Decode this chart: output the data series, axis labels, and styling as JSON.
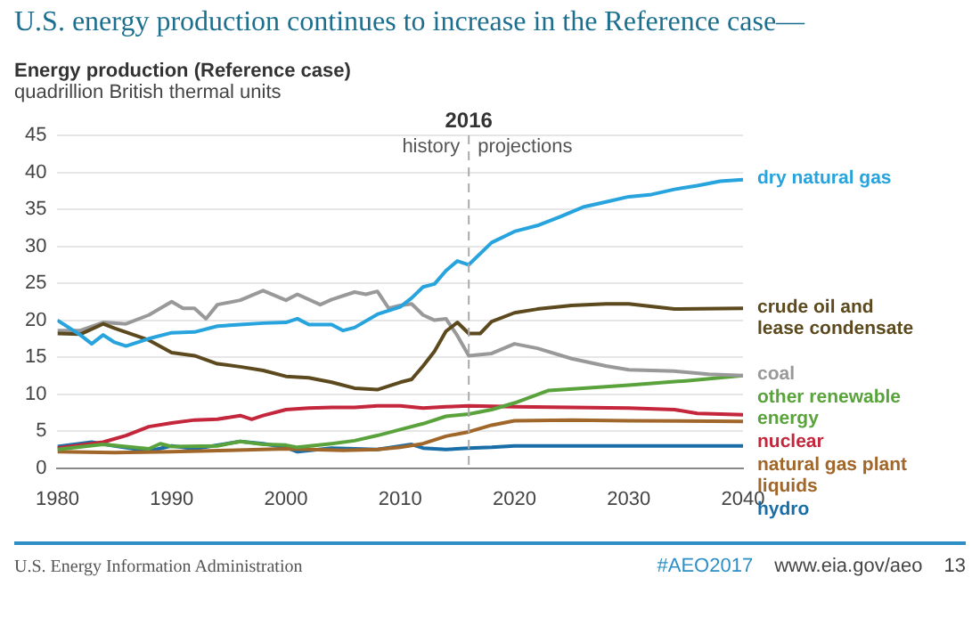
{
  "chart_data": {
    "type": "line",
    "title": "U.S. energy production continues to increase in the Reference case—",
    "subtitle": "Energy production (Reference case)",
    "ylabel": "quadrillion British thermal units",
    "xlim": [
      1980,
      2040
    ],
    "xticks": [
      1980,
      1990,
      2000,
      2010,
      2020,
      2030,
      2040
    ],
    "ylim": [
      0,
      45
    ],
    "yticks": [
      0,
      5,
      10,
      15,
      20,
      25,
      30,
      35,
      40,
      45
    ],
    "grid": "y",
    "marker": "none",
    "line_style": "solid",
    "series": [
      {
        "name": "dry natural gas",
        "color": "#27a3dd",
        "x": [
          1980,
          1982,
          1983,
          1984,
          1985,
          1986,
          1988,
          1990,
          1992,
          1994,
          1996,
          1998,
          2000,
          2001,
          2002,
          2004,
          2005,
          2006,
          2008,
          2010,
          2011,
          2012,
          2013,
          2014,
          2015,
          2016,
          2018,
          2020,
          2022,
          2024,
          2026,
          2028,
          2030,
          2032,
          2034,
          2036,
          2038,
          2040
        ],
        "values": [
          20,
          18,
          16.8,
          18,
          17,
          16.5,
          17.5,
          18.3,
          18.4,
          19.2,
          19.4,
          19.6,
          19.7,
          20.2,
          19.4,
          19.4,
          18.6,
          19,
          20.8,
          21.8,
          23,
          24.5,
          24.9,
          26.7,
          28,
          27.5,
          30.5,
          32,
          32.8,
          34,
          35.3,
          36,
          36.7,
          37,
          37.7,
          38.2,
          38.8,
          39
        ]
      },
      {
        "name": "crude oil and lease condensate",
        "color": "#5c4a1e",
        "x": [
          1980,
          1982,
          1984,
          1985,
          1988,
          1990,
          1992,
          1994,
          1996,
          1998,
          2000,
          2002,
          2004,
          2006,
          2008,
          2010,
          2011,
          2012,
          2013,
          2014,
          2015,
          2016,
          2017,
          2018,
          2020,
          2022,
          2025,
          2028,
          2030,
          2034,
          2040
        ],
        "values": [
          18.2,
          18.1,
          19.5,
          18.9,
          17.3,
          15.6,
          15.2,
          14.1,
          13.7,
          13.2,
          12.4,
          12.2,
          11.6,
          10.8,
          10.6,
          11.6,
          12,
          13.8,
          15.8,
          18.5,
          19.7,
          18.2,
          18.2,
          19.8,
          21,
          21.5,
          22,
          22.2,
          22.2,
          21.5,
          21.6
        ]
      },
      {
        "name": "coal",
        "color": "#999999",
        "x": [
          1980,
          1982,
          1984,
          1986,
          1988,
          1990,
          1991,
          1992,
          1993,
          1994,
          1996,
          1998,
          2000,
          2001,
          2003,
          2004,
          2006,
          2007,
          2008,
          2009,
          2010,
          2011,
          2012,
          2013,
          2014,
          2015,
          2016,
          2018,
          2020,
          2022,
          2025,
          2028,
          2030,
          2034,
          2037,
          2040
        ],
        "values": [
          18.6,
          18.6,
          19.7,
          19.5,
          20.7,
          22.5,
          21.6,
          21.6,
          20.2,
          22.1,
          22.7,
          24,
          22.7,
          23.5,
          22.1,
          22.8,
          23.8,
          23.5,
          23.9,
          21.6,
          22,
          22.2,
          20.7,
          20,
          20.2,
          17.9,
          15.2,
          15.5,
          16.8,
          16.2,
          14.8,
          13.8,
          13.3,
          13.1,
          12.7,
          12.5
        ]
      },
      {
        "name": "other renewable energy",
        "color": "#5aa33c",
        "x": [
          1980,
          1984,
          1988,
          1989,
          1990,
          1994,
          1996,
          1998,
          2000,
          2001,
          2004,
          2006,
          2008,
          2010,
          2012,
          2014,
          2016,
          2018,
          2020,
          2023,
          2026,
          2030,
          2035,
          2040
        ],
        "values": [
          2.5,
          3.2,
          2.6,
          3.3,
          2.9,
          3,
          3.6,
          3.2,
          3.1,
          2.8,
          3.3,
          3.7,
          4.4,
          5.2,
          6,
          7,
          7.3,
          7.9,
          8.8,
          10.5,
          10.8,
          11.2,
          11.8,
          12.5
        ]
      },
      {
        "name": "nuclear",
        "color": "#c4263c",
        "x": [
          1980,
          1984,
          1986,
          1988,
          1990,
          1992,
          1994,
          1996,
          1997,
          1998,
          2000,
          2002,
          2004,
          2006,
          2008,
          2010,
          2012,
          2014,
          2016,
          2020,
          2025,
          2030,
          2034,
          2036,
          2040
        ],
        "values": [
          2.7,
          3.5,
          4.4,
          5.6,
          6.1,
          6.5,
          6.6,
          7.1,
          6.6,
          7.1,
          7.9,
          8.1,
          8.2,
          8.2,
          8.4,
          8.4,
          8.1,
          8.3,
          8.4,
          8.3,
          8.2,
          8.1,
          7.9,
          7.4,
          7.2
        ]
      },
      {
        "name": "natural gas plant liquids",
        "color": "#a0662a",
        "x": [
          1980,
          1985,
          1990,
          1995,
          2000,
          2005,
          2008,
          2010,
          2012,
          2014,
          2016,
          2018,
          2020,
          2025,
          2030,
          2040
        ],
        "values": [
          2.2,
          2.1,
          2.2,
          2.4,
          2.6,
          2.4,
          2.5,
          2.8,
          3.3,
          4.3,
          4.9,
          5.8,
          6.4,
          6.5,
          6.4,
          6.3
        ]
      },
      {
        "name": "hydro",
        "color": "#1a6ea8",
        "x": [
          1980,
          1983,
          1985,
          1988,
          1990,
          1992,
          1996,
          1998,
          2000,
          2001,
          2004,
          2008,
          2011,
          2012,
          2014,
          2016,
          2018,
          2020,
          2040
        ],
        "values": [
          2.9,
          3.5,
          3,
          2.3,
          3,
          2.6,
          3.6,
          3.3,
          2.8,
          2.2,
          2.7,
          2.5,
          3.2,
          2.7,
          2.5,
          2.7,
          2.8,
          3,
          3
        ]
      }
    ],
    "ref_lines": [
      {
        "axis": "x",
        "value": 2016,
        "label": "2016",
        "color": "#aaaaaa",
        "line_style": "dashed"
      }
    ],
    "annotations": [
      "history",
      "projections",
      "U.S. Energy Information Administration",
      "#AEO2017",
      "www.eia.gov/aeo",
      "13"
    ]
  }
}
